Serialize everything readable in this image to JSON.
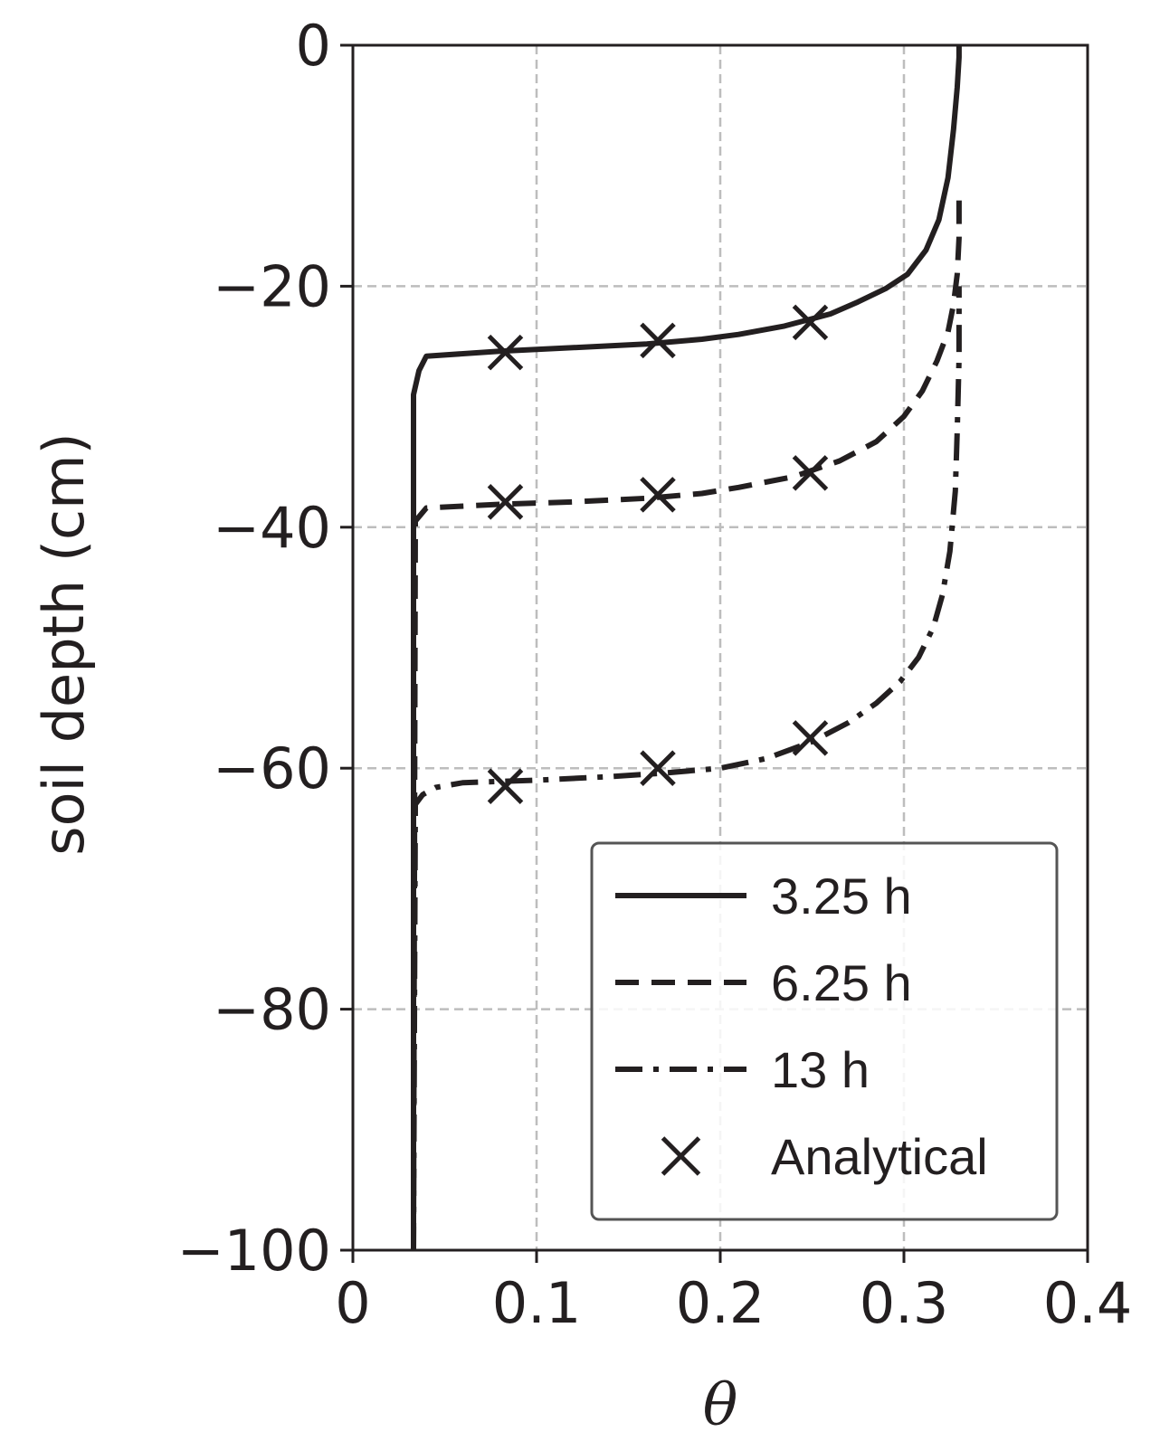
{
  "chart_data": {
    "type": "line",
    "xlabel": "θ",
    "ylabel": "soil depth (cm)",
    "xlim": [
      0,
      0.4
    ],
    "ylim": [
      -100,
      0
    ],
    "xticks": [
      0,
      0.1,
      0.2,
      0.3,
      0.4
    ],
    "xtick_labels": [
      "0",
      "0.1",
      "0.2",
      "0.3",
      "0.4"
    ],
    "yticks": [
      0,
      -20,
      -40,
      -60,
      -80,
      -100
    ],
    "ytick_labels": [
      "0",
      "−20",
      "−40",
      "−60",
      "−80",
      "−100"
    ],
    "grid": true,
    "legend_position": "lower-right",
    "colors": {
      "line": "#231f20",
      "grid": "#bdbdbd",
      "axes": "#231f20"
    },
    "series": [
      {
        "name": "3.25 h",
        "style": "solid",
        "x": [
          0.033,
          0.033,
          0.036,
          0.04,
          0.08,
          0.12,
          0.16,
          0.19,
          0.21,
          0.235,
          0.26,
          0.275,
          0.29,
          0.302,
          0.312,
          0.319,
          0.324,
          0.327,
          0.329,
          0.33,
          0.33
        ],
        "y": [
          -100,
          -29,
          -27,
          -25.8,
          -25.4,
          -25.1,
          -24.8,
          -24.4,
          -24,
          -23.3,
          -22.3,
          -21.3,
          -20.2,
          -19,
          -17,
          -14.5,
          -11,
          -7,
          -3.5,
          -1,
          0
        ]
      },
      {
        "name": "6.25 h",
        "style": "dashed",
        "x": [
          0.033,
          0.034,
          0.04,
          0.08,
          0.12,
          0.16,
          0.19,
          0.21,
          0.24,
          0.265,
          0.285,
          0.3,
          0.31,
          0.318,
          0.324,
          0.327,
          0.329,
          0.33,
          0.33
        ],
        "y": [
          -100,
          -39.5,
          -38.4,
          -38.1,
          -37.9,
          -37.6,
          -37.2,
          -36.7,
          -35.8,
          -34.5,
          -32.9,
          -30.8,
          -28.7,
          -26.2,
          -23.8,
          -21.5,
          -19,
          -16,
          -12
        ]
      },
      {
        "name": "13 h",
        "style": "dashdot",
        "x": [
          0.033,
          0.034,
          0.038,
          0.045,
          0.06,
          0.1,
          0.14,
          0.17,
          0.2,
          0.225,
          0.25,
          0.27,
          0.285,
          0.298,
          0.308,
          0.316,
          0.321,
          0.325,
          0.328,
          0.329,
          0.33,
          0.33
        ],
        "y": [
          -100,
          -63,
          -62.2,
          -61.6,
          -61.2,
          -61,
          -60.7,
          -60.4,
          -60,
          -59.2,
          -57.8,
          -56.2,
          -54.6,
          -52.8,
          -50.8,
          -48.3,
          -45.6,
          -42,
          -37,
          -32,
          -26,
          -20
        ]
      },
      {
        "name": "Analytical",
        "style": "marker-x",
        "x": [
          0.083,
          0.166,
          0.249,
          0.083,
          0.166,
          0.249,
          0.083,
          0.166,
          0.249
        ],
        "y": [
          -25.5,
          -24.5,
          -23,
          -37.9,
          -37.3,
          -35.5,
          -61.5,
          -60,
          -57.5
        ]
      }
    ]
  }
}
